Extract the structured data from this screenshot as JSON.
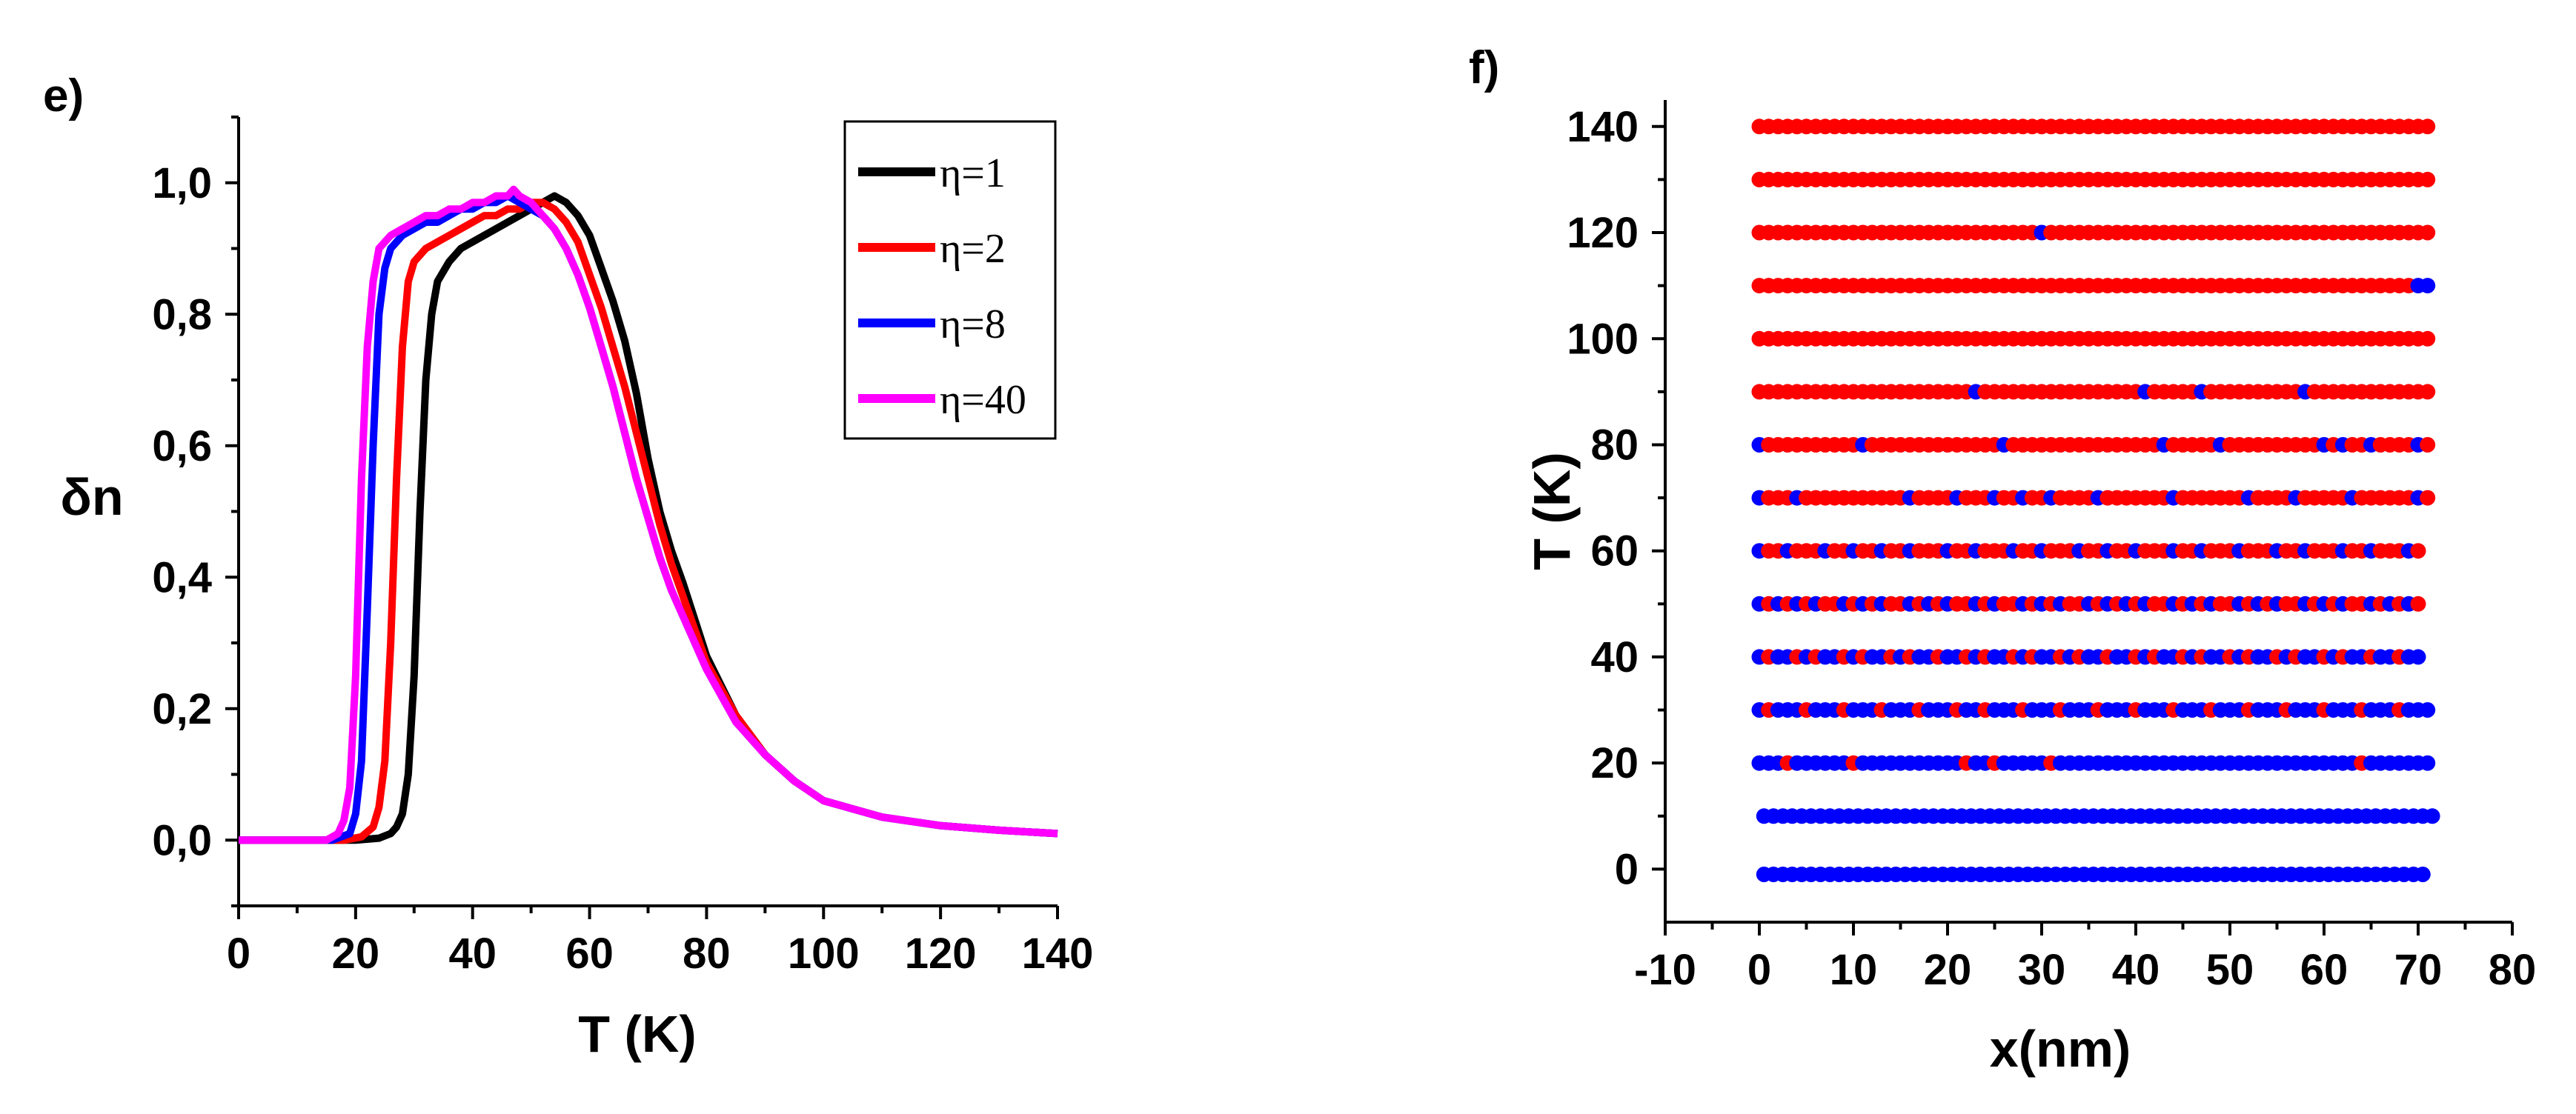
{
  "figure": [
    {
      "panel": "e)",
      "chart_data": {
        "type": "line",
        "xlabel": "T (K)",
        "ylabel": "δn",
        "xlim": [
          0,
          140
        ],
        "ylim": [
          -0.1,
          1.1
        ],
        "xticks": [
          0,
          20,
          40,
          60,
          80,
          100,
          120,
          140
        ],
        "xtick_labels": [
          "0",
          "20",
          "40",
          "60",
          "80",
          "100",
          "120",
          "140"
        ],
        "yticks": [
          0.0,
          0.2,
          0.4,
          0.6,
          0.8,
          1.0
        ],
        "ytick_labels": [
          "0,0",
          "0,2",
          "0,4",
          "0,6",
          "0,8",
          "1,0"
        ],
        "legend_position": "top-right",
        "series": [
          {
            "name": "η=1",
            "color": "#000000",
            "x": [
              0,
              20,
              24,
              26,
              27,
              28,
              29,
              30,
              31,
              32,
              33,
              34,
              36,
              38,
              40,
              42,
              44,
              46,
              48,
              50,
              52,
              54,
              56,
              58,
              60,
              62,
              64,
              66,
              68,
              70,
              72,
              74,
              76,
              80,
              85,
              90,
              95,
              100,
              110,
              120,
              130,
              140
            ],
            "values": [
              0,
              0,
              0.003,
              0.01,
              0.02,
              0.04,
              0.1,
              0.25,
              0.5,
              0.7,
              0.8,
              0.85,
              0.88,
              0.9,
              0.91,
              0.92,
              0.93,
              0.94,
              0.95,
              0.96,
              0.97,
              0.98,
              0.97,
              0.95,
              0.92,
              0.87,
              0.82,
              0.76,
              0.68,
              0.58,
              0.5,
              0.44,
              0.39,
              0.28,
              0.19,
              0.13,
              0.09,
              0.06,
              0.035,
              0.022,
              0.015,
              0.01
            ]
          },
          {
            "name": "η=2",
            "color": "#ff0000",
            "x": [
              0,
              18,
              21,
              23,
              24,
              25,
              26,
              27,
              28,
              29,
              30,
              32,
              34,
              36,
              38,
              40,
              42,
              44,
              46,
              48,
              50,
              52,
              54,
              56,
              58,
              60,
              62,
              64,
              66,
              68,
              70,
              72,
              74,
              76,
              80,
              85,
              90,
              95,
              100,
              110,
              120,
              130,
              140
            ],
            "values": [
              0,
              0,
              0.005,
              0.02,
              0.05,
              0.12,
              0.3,
              0.55,
              0.75,
              0.85,
              0.88,
              0.9,
              0.91,
              0.92,
              0.93,
              0.94,
              0.95,
              0.95,
              0.96,
              0.96,
              0.97,
              0.97,
              0.96,
              0.94,
              0.91,
              0.86,
              0.81,
              0.75,
              0.69,
              0.62,
              0.55,
              0.48,
              0.42,
              0.37,
              0.27,
              0.19,
              0.13,
              0.09,
              0.06,
              0.035,
              0.022,
              0.015,
              0.01
            ]
          },
          {
            "name": "η=8",
            "color": "#0000ff",
            "x": [
              0,
              16,
              19,
              20,
              21,
              22,
              23,
              24,
              25,
              26,
              28,
              30,
              32,
              34,
              36,
              38,
              40,
              42,
              44,
              46,
              48,
              50,
              52,
              54,
              56,
              58,
              60,
              62,
              64,
              66,
              68,
              70,
              72,
              74,
              76,
              80,
              85,
              90,
              95,
              100,
              110,
              120,
              130,
              140
            ],
            "values": [
              0,
              0,
              0.01,
              0.04,
              0.12,
              0.35,
              0.6,
              0.8,
              0.87,
              0.9,
              0.92,
              0.93,
              0.94,
              0.94,
              0.95,
              0.96,
              0.96,
              0.97,
              0.97,
              0.98,
              0.97,
              0.96,
              0.95,
              0.93,
              0.9,
              0.86,
              0.81,
              0.75,
              0.69,
              0.62,
              0.55,
              0.49,
              0.43,
              0.38,
              0.34,
              0.26,
              0.18,
              0.13,
              0.09,
              0.06,
              0.035,
              0.022,
              0.015,
              0.01
            ]
          },
          {
            "name": "η=40",
            "color": "#ff00ff",
            "x": [
              0,
              15,
              17,
              18,
              19,
              20,
              21,
              22,
              23,
              24,
              26,
              28,
              30,
              32,
              34,
              36,
              38,
              40,
              42,
              44,
              46,
              47,
              48,
              50,
              52,
              54,
              56,
              58,
              60,
              62,
              64,
              66,
              68,
              70,
              72,
              74,
              76,
              80,
              85,
              90,
              95,
              100,
              110,
              120,
              130,
              140
            ],
            "values": [
              0,
              0,
              0.01,
              0.03,
              0.08,
              0.25,
              0.55,
              0.75,
              0.85,
              0.9,
              0.92,
              0.93,
              0.94,
              0.95,
              0.95,
              0.96,
              0.96,
              0.97,
              0.97,
              0.98,
              0.98,
              0.99,
              0.98,
              0.97,
              0.95,
              0.93,
              0.9,
              0.86,
              0.81,
              0.75,
              0.69,
              0.62,
              0.55,
              0.49,
              0.43,
              0.38,
              0.34,
              0.26,
              0.18,
              0.13,
              0.09,
              0.06,
              0.035,
              0.022,
              0.015,
              0.01
            ]
          }
        ]
      }
    },
    {
      "panel": "f)",
      "chart_data": {
        "type": "scatter",
        "xlabel": "x(nm)",
        "ylabel": "T (K)",
        "xlim": [
          -10,
          80
        ],
        "ylim": [
          -10,
          145
        ],
        "xticks": [
          -10,
          0,
          10,
          20,
          30,
          40,
          50,
          60,
          70,
          80
        ],
        "xtick_labels": [
          "-10",
          "0",
          "10",
          "20",
          "30",
          "40",
          "50",
          "60",
          "70",
          "80"
        ],
        "yticks": [
          0,
          20,
          40,
          60,
          80,
          100,
          120,
          140
        ],
        "ytick_labels": [
          "0",
          "20",
          "40",
          "60",
          "80",
          "100",
          "120",
          "140"
        ],
        "x_start": 0,
        "x_step": 1,
        "colors": {
          "R": "#ff0000",
          "B": "#0000ff"
        },
        "rows": [
          {
            "T": 140,
            "x_offset": 0.0,
            "sites": "RRRRRRRRRRRRRRRRRRRRRRRRRRRRRRRRRRRRRRRRRRRRRRRRRRRRRRRRRRRRRRRRRRRRRRRR"
          },
          {
            "T": 130,
            "x_offset": 0.0,
            "sites": "RRRRRRRRRRRRRRRRRRRRRRRRRRRRRRRRRRRRRRRRRRRRRRRRRRRRRRRRRRRRRRRRRRRRRRRR"
          },
          {
            "T": 120,
            "x_offset": 0.0,
            "sites": "RRRRRRRRRRRRRRRRRRRRRRRRRRRRRRBRRRRRRRRRRRRRRRRRRRRRRRRRRRRRRRRRRRRRRRRR"
          },
          {
            "T": 110,
            "x_offset": 0.0,
            "sites": "RRRRRRRRRRRRRRRRRRRRRRRRRRRRRRRRRRRRRRRRRRRRRRRRRRRRRRRRRRRRRRRRRRRRRRBB"
          },
          {
            "T": 100,
            "x_offset": 0.0,
            "sites": "RRRRRRRRRRRRRRRRRRRRRRRRRRRRRRRRRRRRRRRRRRRRRRRRRRRRRRRRRRRRRRRRRRRRRRRR"
          },
          {
            "T": 90,
            "x_offset": 0.0,
            "sites": "RRRRRRRRRRRRRRRRRRRRRRRBRRRRRRRRRRRRRRRRRBRRRRRBRRRRRRRRRRBRRRRRRRRRRRRR"
          },
          {
            "T": 80,
            "x_offset": 0.0,
            "sites": "BRRRRRRRRRRBRRRRRRRRRRRRRRBRRRRRRRRRRRRRRRRBRRRRRBRRRRRRRRRRBRBRRBRRRRBR"
          },
          {
            "T": 70,
            "x_offset": 0.0,
            "sites": "BRRRBRRRRRRRRRRRBRRRRBRRRBRRBRRBRRRRBRRRRRRRBRRRRRRRBRRRRBRRRRRBRRRRRRBR"
          },
          {
            "T": 60,
            "x_offset": 0.0,
            "sites": "BRRBRRRBRRBRRBRRBRRRBRRBRRRBRRBRRRBRRBRRBRRRBRRBRRRBRRRBRRBRRRBRRBRRRBR"
          },
          {
            "T": 50,
            "x_offset": 0.0,
            "sites": "BRBRBRBRRBRBRBRRBRBRBRRBRBRRBRBRBRRBRBRBRBRRBRBRBRRBRBRBRRBRBRBRRBRBRBR"
          },
          {
            "T": 40,
            "x_offset": 0.0,
            "sites": "BRBBRBRBBRBRBBRBRBBRBBRBRBBRBRBBRBRBBRBBRBRBBRBRBBRBRBBRBRBBRBRBBRBBRBB"
          },
          {
            "T": 30,
            "x_offset": 0.0,
            "sites": "BRBBBRBBBRBBBRBBBRBBBRBBRBBBRBBBRBBBRBBBRBBBRBBBRBBBRBBBRBBBRBBBRBBBRBBB"
          },
          {
            "T": 20,
            "x_offset": 0.0,
            "sites": "BBBRBBBBBBRBBBBBBBBBBBRBBRBBBBBRBBBBBBBBBBBBBBBBBBBBBBBBBBBBBBBBRBBBBBBB"
          },
          {
            "T": 10,
            "x_offset": 0.5,
            "sites": "BBBBBBBBBBBBBBBBBBBBBBBBBBBBBBBBBBBBBBBBBBBBBBBBBBBBBBBBBBBBBBBBBBBBBBBB"
          },
          {
            "T": -1,
            "x_offset": 0.5,
            "sites": "BBBBBBBBBBBBBBBBBBBBBBBBBBBBBBBBBBBBBBBBBBBBBBBBBBBBBBBBBBBBBBBBBBBBBBB"
          }
        ]
      }
    }
  ]
}
